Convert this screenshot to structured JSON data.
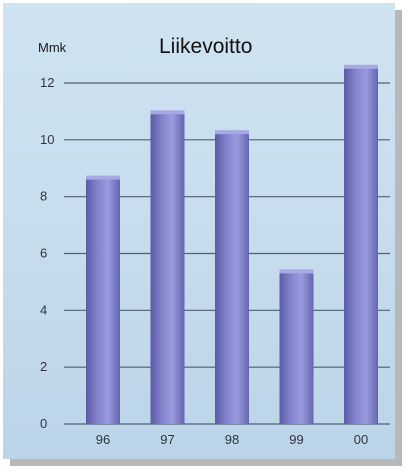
{
  "chart_data": {
    "type": "bar",
    "title": "Liikevoitto",
    "ylabel": "Mmk",
    "xlabel": "",
    "categories": [
      "96",
      "97",
      "98",
      "99",
      "00"
    ],
    "values": [
      8.6,
      10.9,
      10.2,
      5.3,
      12.5
    ],
    "ylim": [
      0,
      12
    ],
    "yticks": [
      0,
      2,
      4,
      6,
      8,
      10,
      12
    ],
    "ytick_labels": [
      "0",
      "2",
      "4",
      "6",
      "8",
      "10",
      "12"
    ],
    "grid": true,
    "legend": "none",
    "colors": {
      "bar": "#7f7fc9",
      "bar_dark": "#5c5ca8",
      "bar_light": "#a8a8e4",
      "grid": "#4f6170",
      "background": "#c8ddee"
    }
  }
}
